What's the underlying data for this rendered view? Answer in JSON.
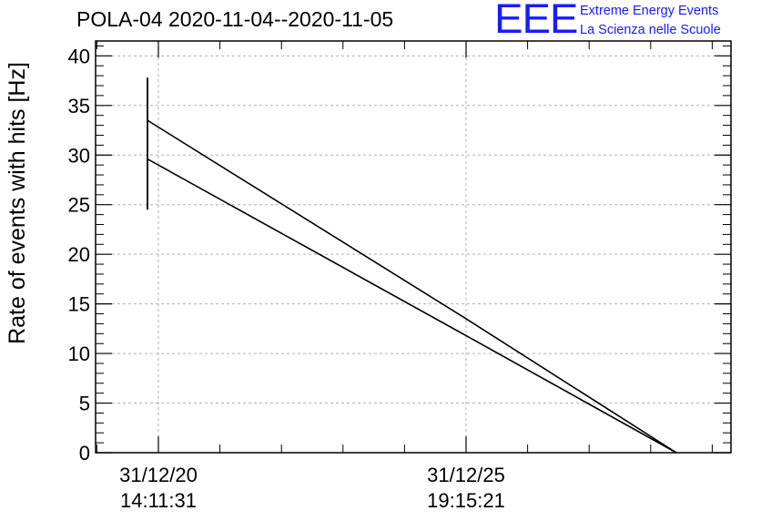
{
  "header": {
    "title": "POLA-04 2020-11-04--2020-11-05"
  },
  "logo": {
    "mark": "EEE",
    "line1": "Extreme Energy Events",
    "line2": "La Scienza nelle Scuole",
    "color": "#1a1aff"
  },
  "chart_data": {
    "type": "line",
    "title": "POLA-04 2020-11-04--2020-11-05",
    "xlabel": "",
    "ylabel": "Rate of events with hits [Hz]",
    "ylim": [
      0,
      41.5
    ],
    "yticks": [
      0,
      5,
      10,
      15,
      20,
      25,
      30,
      35,
      40
    ],
    "xticks": [
      {
        "date": "31/12/20",
        "time": "14:11:31"
      },
      {
        "date": "31/12/25",
        "time": "19:15:21"
      }
    ],
    "grid": true,
    "series": [
      {
        "points": [
          {
            "x": "31/12/20 14:11:31",
            "y": 33.5
          },
          {
            "x": "31/12/25 19:15:21",
            "y": 13.5
          },
          {
            "x": "end",
            "y": 0
          }
        ]
      },
      {
        "points": [
          {
            "x": "31/12/20 14:11:31",
            "y": 29.6
          },
          {
            "x": "31/12/25 19:15:21",
            "y": 11.8
          },
          {
            "x": "end",
            "y": 0
          }
        ]
      }
    ],
    "error_bars": [
      {
        "x": "31/12/20 14:11:31",
        "low": 24.5,
        "high": 37.8
      }
    ],
    "line_color": "#000000"
  }
}
